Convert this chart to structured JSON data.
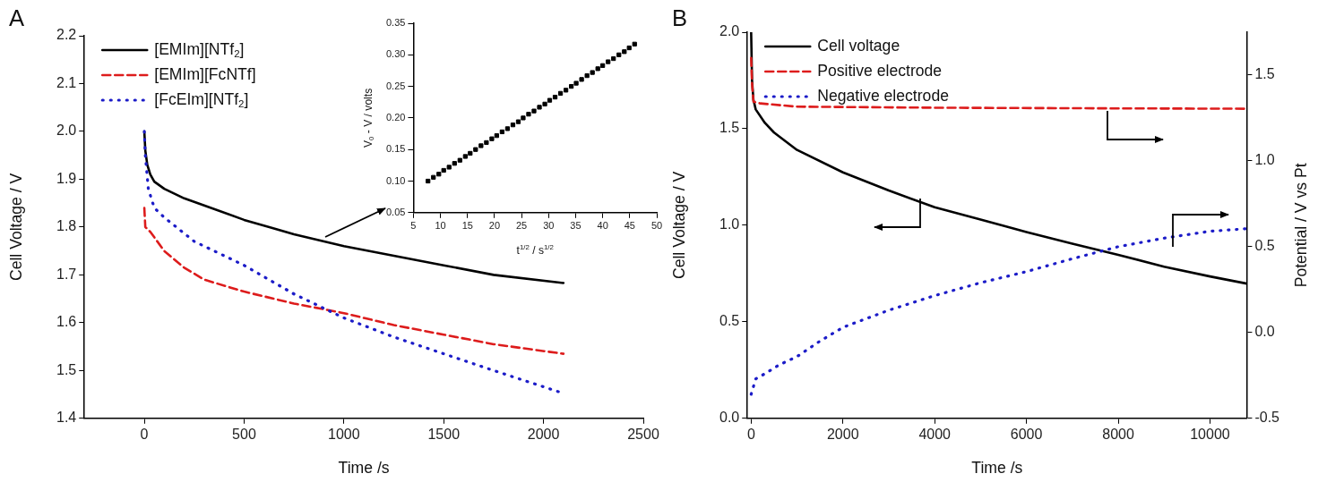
{
  "chart_data": [
    {
      "type": "line",
      "annotations": [
        "A"
      ],
      "xlabel": "Time /s",
      "ylabel": "Cell Voltage / V",
      "xlim": [
        -300,
        2500
      ],
      "xticks": [
        0,
        500,
        1000,
        1500,
        2000,
        2500
      ],
      "ylim": [
        1.4,
        2.2
      ],
      "yticks": [
        1.4,
        1.5,
        1.6,
        1.7,
        1.8,
        1.9,
        {
          "value": 2,
          "label": "2.0"
        },
        2.1,
        2.2
      ],
      "legend": "top left",
      "series": [
        {
          "name": "[EMIm][NTf$_{2}$]",
          "color": "#000000",
          "line_style": "solid",
          "x": [
            0,
            5,
            15,
            30,
            50,
            100,
            200,
            300,
            500,
            750,
            1000,
            1250,
            1500,
            1750,
            2100
          ],
          "values": [
            2.0,
            1.96,
            1.93,
            1.91,
            1.895,
            1.88,
            1.86,
            1.845,
            1.815,
            1.785,
            1.76,
            1.74,
            1.72,
            1.7,
            1.683
          ]
        },
        {
          "name": "[EMIm][FcNTf]",
          "color": "#dd1c1c",
          "line_style": "dashed",
          "x": [
            0,
            5,
            30,
            100,
            200,
            300,
            500,
            750,
            1000,
            1250,
            1500,
            1750,
            2100
          ],
          "values": [
            1.84,
            1.8,
            1.79,
            1.75,
            1.715,
            1.69,
            1.665,
            1.64,
            1.62,
            1.595,
            1.575,
            1.555,
            1.535
          ]
        },
        {
          "name": "[FcEIm][NTf$_{2}$]",
          "color": "#1c1cc8",
          "line_style": "dotted",
          "x": [
            0,
            5,
            20,
            50,
            100,
            250,
            500,
            750,
            1000,
            1250,
            1500,
            1750,
            2080
          ],
          "values": [
            2.0,
            1.95,
            1.88,
            1.84,
            1.82,
            1.77,
            1.72,
            1.66,
            1.61,
            1.57,
            1.535,
            1.5,
            1.455
          ]
        }
      ]
    },
    {
      "type": "scatter",
      "marker": "square",
      "xlabel": "t$^{1/2}$ / s$^{1/2}$",
      "ylabel": "V$_{0}$ - V / volts",
      "xlim": [
        5,
        50
      ],
      "xticks": [
        5,
        10,
        15,
        20,
        25,
        30,
        35,
        40,
        45,
        50
      ],
      "ylim": [
        0.05,
        0.35
      ],
      "yticks": [
        0.05,
        {
          "value": 0.1,
          "label": "0.10"
        },
        0.15,
        {
          "value": 0.2,
          "label": "0.20"
        },
        0.25,
        {
          "value": 0.3,
          "label": "0.30"
        },
        0.35
      ],
      "series": [
        {
          "color": "#000000",
          "x": [
            7.7,
            8.7,
            9.7,
            10.6,
            11.6,
            12.6,
            13.6,
            14.6,
            15.5,
            16.5,
            17.5,
            18.5,
            19.5,
            20.4,
            21.4,
            22.4,
            23.4,
            24.4,
            25.3,
            26.3,
            27.3,
            28.3,
            29.3,
            30.2,
            31.2,
            32.2,
            33.2,
            34.2,
            35.1,
            36.1,
            37.1,
            38.1,
            39.1,
            40.0,
            41.0,
            42.0,
            43.0,
            44.0,
            44.9,
            45.9
          ],
          "values": [
            0.1,
            0.106,
            0.111,
            0.117,
            0.122,
            0.128,
            0.133,
            0.139,
            0.144,
            0.15,
            0.156,
            0.161,
            0.167,
            0.172,
            0.178,
            0.183,
            0.189,
            0.194,
            0.2,
            0.206,
            0.211,
            0.217,
            0.222,
            0.228,
            0.233,
            0.239,
            0.244,
            0.25,
            0.255,
            0.261,
            0.267,
            0.272,
            0.278,
            0.283,
            0.289,
            0.294,
            0.3,
            0.305,
            0.311,
            0.317
          ]
        }
      ]
    },
    {
      "type": "line",
      "annotations": [
        "B"
      ],
      "xlabel": "Time /s",
      "ylabel": "Cell Voltage / V",
      "y2label": "Potential / V vs Pt",
      "xlim": [
        -80,
        10800
      ],
      "xticks": [
        0,
        2000,
        4000,
        6000,
        8000,
        10000
      ],
      "ylim": [
        0,
        2
      ],
      "yticks": [
        {
          "value": 0,
          "label": "0.0"
        },
        0.5,
        {
          "value": 1,
          "label": "1.0"
        },
        1.5,
        {
          "value": 2,
          "label": "2.0"
        }
      ],
      "y2lim": [
        -0.5,
        1.75
      ],
      "y2ticks": [
        -0.5,
        {
          "value": 0,
          "label": "0.0"
        },
        0.5,
        {
          "value": 1,
          "label": "1.0"
        },
        1.5
      ],
      "legend": "top left",
      "series": [
        {
          "name": "Cell voltage",
          "color": "#000000",
          "line_style": "solid",
          "x": [
            0,
            20,
            50,
            100,
            300,
            500,
            1000,
            2000,
            3000,
            4000,
            5000,
            6000,
            7000,
            8000,
            9000,
            10000,
            10800
          ],
          "values": [
            2.0,
            1.75,
            1.65,
            1.6,
            1.53,
            1.48,
            1.39,
            1.274,
            1.18,
            1.093,
            1.03,
            0.965,
            0.905,
            0.847,
            0.785,
            0.735,
            0.698
          ]
        },
        {
          "name": "Positive electrode",
          "color": "#dd1c1c",
          "line_style": "dashed",
          "axis": "y2",
          "x": [
            0,
            20,
            50,
            200,
            1000,
            4000,
            8000,
            10800
          ],
          "values": [
            1.6,
            1.45,
            1.345,
            1.335,
            1.316,
            1.31,
            1.306,
            1.304
          ]
        },
        {
          "name": "Negative electrode",
          "color": "#1c1cc8",
          "line_style": "dotted",
          "axis": "y2",
          "x": [
            0,
            100,
            300,
            600,
            1000,
            1500,
            2000,
            3000,
            4000,
            5000,
            6000,
            7000,
            8000,
            9000,
            10000,
            10800
          ],
          "values": [
            -0.36,
            -0.27,
            -0.24,
            -0.19,
            -0.14,
            -0.05,
            0.03,
            0.13,
            0.215,
            0.29,
            0.355,
            0.43,
            0.5,
            0.55,
            0.59,
            0.605
          ]
        }
      ]
    }
  ]
}
